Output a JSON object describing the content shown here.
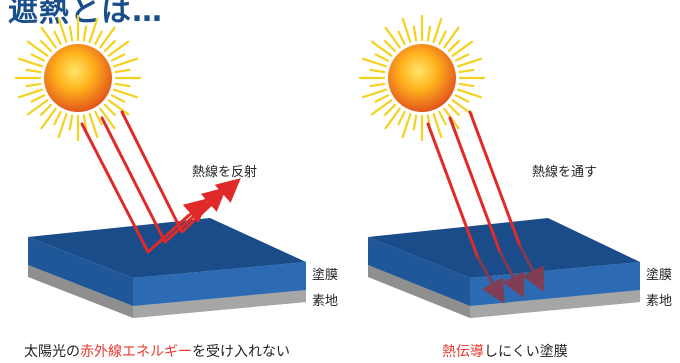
{
  "title": "遮熱とは…",
  "left_panel": {
    "arrow_label": "熱線を反射",
    "layer_coating": "塗膜",
    "layer_base": "素地",
    "caption_pre": "太陽光の",
    "caption_highlight": "赤外線エネルギー",
    "caption_post": "を受け入れない"
  },
  "right_panel": {
    "arrow_label": "熱線を通す",
    "layer_coating": "塗膜",
    "layer_base": "素地",
    "caption_highlight": "熱伝導",
    "caption_post": "しにくい塗膜"
  },
  "colors": {
    "sun_core": "#f7a21b",
    "sun_rays": "#f5d21f",
    "ray": "#e02a2a",
    "coating_top": "#1d4f8f",
    "coating_side": "#2a66ad",
    "base": "#9b9b9b",
    "highlight_text": "#e63a2f"
  }
}
